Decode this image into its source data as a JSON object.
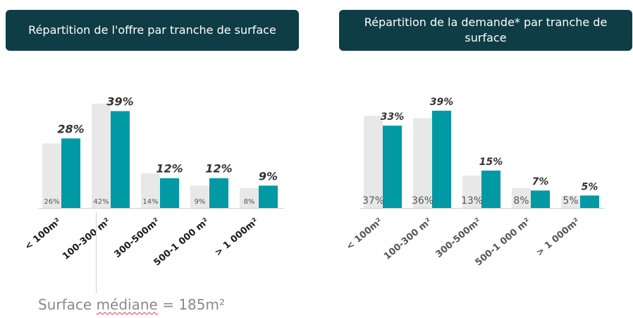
{
  "titles": {
    "left": "Répartition de l'offre par tranche de surface",
    "right": "Répartition de la demande* par tranche de surface"
  },
  "median": {
    "prefix": "Surface ",
    "underlined": "médiane",
    "suffix": " = 185m²"
  },
  "colors": {
    "header_bg": "#0e3d45",
    "prior_bar": "#e8e8e8",
    "current_bar": "#0099a4"
  },
  "chart_data": [
    {
      "type": "bar",
      "title": "Répartition de l'offre par tranche de surface",
      "categories": [
        "< 100m²",
        "100-300 m²",
        "300-500m²",
        "500-1 000 m²",
        "> 1 000m²"
      ],
      "series": [
        {
          "values": [
            26,
            42,
            14,
            9,
            8
          ],
          "labels": [
            "26%",
            "42%",
            "14%",
            "9%",
            "8%"
          ]
        },
        {
          "values": [
            28,
            39,
            12,
            12,
            9
          ],
          "labels": [
            "28%",
            "39%",
            "12%",
            "12%",
            "9%"
          ]
        }
      ],
      "ylim": [
        0,
        42
      ]
    },
    {
      "type": "bar",
      "title": "Répartition de la demande* par tranche de surface",
      "categories": [
        "< 100m²",
        "100-300 m²",
        "300-500m²",
        "500-1 000 m²",
        "> 1 000m²"
      ],
      "series": [
        {
          "values": [
            37,
            36,
            13,
            8,
            5
          ],
          "labels": [
            "37%",
            "36%",
            "13%",
            "8%",
            "5%"
          ]
        },
        {
          "values": [
            33,
            39,
            15,
            7,
            5
          ],
          "labels": [
            "33%",
            "39%",
            "15%",
            "7%",
            "5%"
          ]
        }
      ],
      "ylim": [
        0,
        39
      ]
    }
  ]
}
